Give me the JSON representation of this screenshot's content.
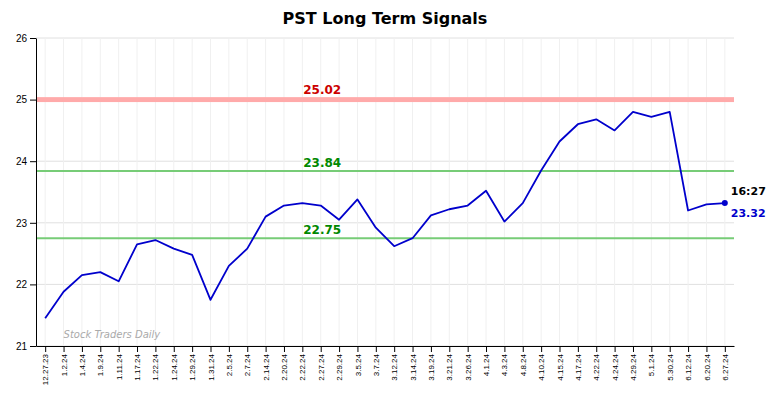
{
  "chart_data": {
    "type": "line",
    "title": "PST Long Term Signals",
    "categories": [
      "12.27.23",
      "1.2.24",
      "1.4.24",
      "1.9.24",
      "1.11.24",
      "1.17.24",
      "1.22.24",
      "1.24.24",
      "1.29.24",
      "1.31.24",
      "2.5.24",
      "2.7.24",
      "2.14.24",
      "2.20.24",
      "2.22.24",
      "2.27.24",
      "2.29.24",
      "3.5.24",
      "3.7.24",
      "3.12.24",
      "3.14.24",
      "3.19.24",
      "3.21.24",
      "3.26.24",
      "4.1.24",
      "4.3.24",
      "4.8.24",
      "4.10.24",
      "4.15.24",
      "4.17.24",
      "4.22.24",
      "4.24.24",
      "4.29.24",
      "5.1.24",
      "5.30.24",
      "6.12.24",
      "6.20.24",
      "6.27.24"
    ],
    "values": [
      21.45,
      21.88,
      22.15,
      22.2,
      22.05,
      22.65,
      22.72,
      22.58,
      22.48,
      21.75,
      22.3,
      22.58,
      23.1,
      23.28,
      23.32,
      23.28,
      23.05,
      23.38,
      22.92,
      22.62,
      22.75,
      23.12,
      23.22,
      23.28,
      23.52,
      23.02,
      23.32,
      23.85,
      24.32,
      24.6,
      24.68,
      24.5,
      24.8,
      24.72,
      24.8,
      23.2,
      23.3,
      23.32
    ],
    "color": "#0000cc",
    "ylim": [
      21,
      26
    ],
    "yticks": [
      21,
      22,
      23,
      24,
      25,
      26
    ],
    "grid": true,
    "bands": [
      {
        "from": 24.96,
        "to": 25.04,
        "color": "#ffaaaa"
      }
    ],
    "reference_lines": [
      {
        "value": 23.84,
        "color": "#77cc77"
      },
      {
        "value": 22.75,
        "color": "#77cc77"
      }
    ],
    "annotations": [
      {
        "text": "25.02",
        "value": 25.02,
        "color": "#cc0000"
      },
      {
        "text": "23.84",
        "value": 23.84,
        "color": "#008800"
      },
      {
        "text": "22.75",
        "value": 22.75,
        "color": "#008800"
      }
    ],
    "end_labels": [
      "16:27",
      "23.32"
    ],
    "watermark": "Stock Traders Daily",
    "watermark_color": "#aaaaaa"
  }
}
